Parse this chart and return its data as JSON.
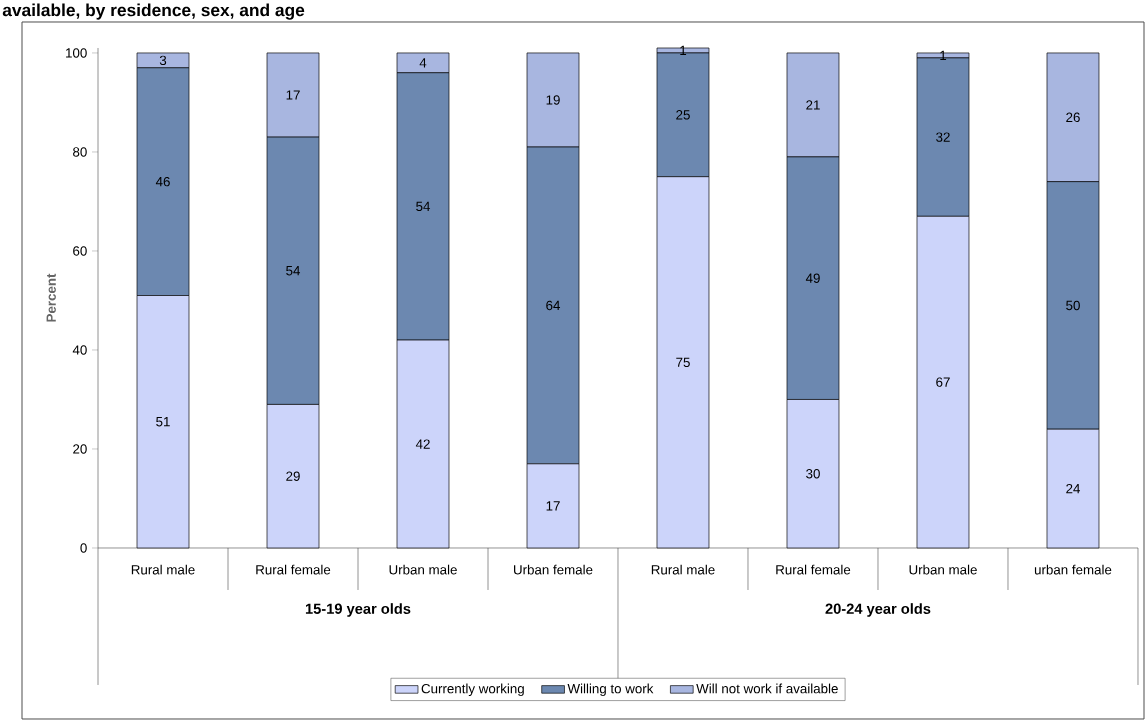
{
  "chart_data": {
    "type": "bar",
    "stacked": true,
    "title": "available, by residence, sex, and age",
    "ylabel": "Percent",
    "categories": [
      "Rural male",
      "Rural female",
      "Urban male",
      "Urban female",
      "Rural male",
      "Rural female",
      "Urban male",
      "urban female"
    ],
    "series": [
      {
        "name": "Currently working",
        "color": "#ccd4fa",
        "values": [
          51,
          29,
          42,
          17,
          75,
          30,
          67,
          24
        ]
      },
      {
        "name": "Willing to work",
        "color": "#6c88b0",
        "values": [
          46,
          54,
          54,
          64,
          25,
          49,
          32,
          50
        ]
      },
      {
        "name": "Will not work if available",
        "color": "#a8b6e0",
        "values": [
          3,
          17,
          4,
          19,
          1,
          21,
          1,
          26
        ]
      }
    ],
    "annotations": [
      "15-19 year olds",
      "20-24 year olds"
    ],
    "ylim": [
      0,
      101
    ],
    "yticks": [
      0,
      20,
      40,
      60,
      80,
      100
    ],
    "data_labels": true,
    "legend": "bottom",
    "grid": false
  }
}
